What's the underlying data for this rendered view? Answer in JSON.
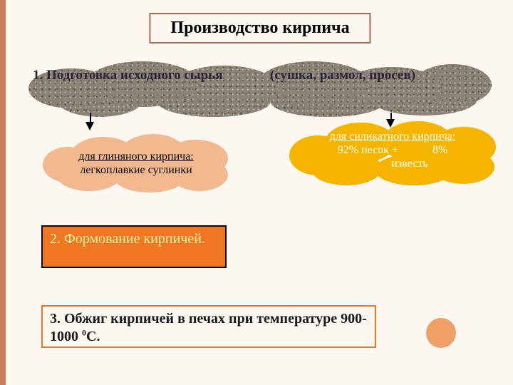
{
  "title": {
    "text": "Производство кирпича",
    "border_color": "#b06a4a",
    "font_size": 24
  },
  "step1": {
    "text_html": "1. Подготовка исходного сырья&nbsp;&nbsp;&nbsp;&nbsp;&nbsp;&nbsp;&nbsp;&nbsp;&nbsp;&nbsp;&nbsp;&nbsp;&nbsp;&nbsp;(сушка, размол, просев)",
    "bg_color": "#8a8274",
    "text_color": "#2a2437"
  },
  "clay": {
    "title": "для глиняного кирпича:",
    "body": "легкоплавкие суглинки",
    "fill": "#f3b98e",
    "text_color": "#000000"
  },
  "silicate": {
    "title": "для силикатного кирпича:",
    "line2": "92% песок +            8%",
    "line3": "известь",
    "fill": "#f4b400",
    "text_color": "#ffffff"
  },
  "step2": {
    "text": "2. Формование кирпичей.",
    "fill": "#ef7722",
    "border": "#000000",
    "text_color": "#f6f3a1"
  },
  "step3": {
    "text_html": "3. Обжиг кирпичей в печах при температуре 900-1000 <sup>0</sup>С.",
    "fill": "#fcf7f1",
    "border": "#ef7722",
    "text_color": "#1a1a1a"
  },
  "circle": {
    "fill": "#f0a066"
  },
  "background": "#fcf7f1",
  "accent_bar": "#c87d5a"
}
